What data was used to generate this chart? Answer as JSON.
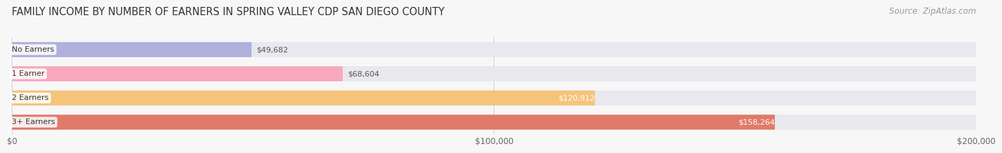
{
  "title": "FAMILY INCOME BY NUMBER OF EARNERS IN SPRING VALLEY CDP SAN DIEGO COUNTY",
  "source": "Source: ZipAtlas.com",
  "categories": [
    "No Earners",
    "1 Earner",
    "2 Earners",
    "3+ Earners"
  ],
  "values": [
    49682,
    68604,
    120912,
    158264
  ],
  "bar_colors": [
    "#b0b0dd",
    "#f7a8bc",
    "#f5c47a",
    "#e07b6a"
  ],
  "bar_bg_color": "#e8e8ee",
  "label_bg_color": "#ffffff",
  "value_label_colors": [
    "#666666",
    "#666666",
    "#ffffff",
    "#ffffff"
  ],
  "value_labels": [
    "$49,682",
    "$68,604",
    "$120,912",
    "$158,264"
  ],
  "xlim": [
    0,
    200000
  ],
  "xticks": [
    0,
    100000,
    200000
  ],
  "xtick_labels": [
    "$0",
    "$100,000",
    "$200,000"
  ],
  "title_fontsize": 10.5,
  "source_fontsize": 8.5,
  "bar_height": 0.62,
  "background_color": "#f7f7f7",
  "value_threshold": 0.45
}
